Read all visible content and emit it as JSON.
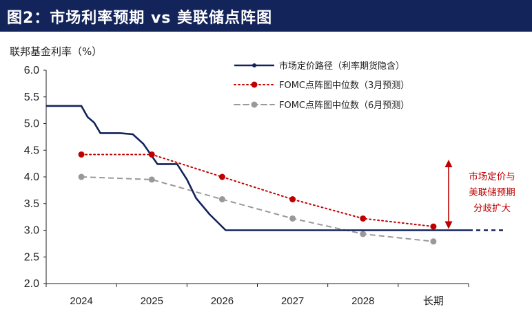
{
  "header": {
    "title": "图2：市场利率预期 vs 美联储点阵图"
  },
  "colors": {
    "banner": "#13245b",
    "market": "#13245b",
    "dot_march": "#c00000",
    "dot_june": "#999999",
    "annotation": "#c00000"
  },
  "chart_data": {
    "type": "line",
    "title": "市场利率预期 vs 美联储点阵图",
    "ylabel": "联邦基金利率（%）",
    "xlabel": "",
    "ylim": [
      2.0,
      6.0
    ],
    "yticks": [
      "6.0",
      "5.5",
      "5.0",
      "4.5",
      "4.0",
      "3.5",
      "3.0",
      "2.5",
      "2.0"
    ],
    "categories": [
      "2024",
      "2025",
      "2026",
      "2027",
      "2028",
      "长期"
    ],
    "legend_position": "top-right",
    "grid": false,
    "series": [
      {
        "name": "市场定价路径（利率期货隐含）",
        "style": "solid",
        "color": "#13245b",
        "points": [
          [
            -0.5,
            5.33
          ],
          [
            0.0,
            5.33
          ],
          [
            0.09,
            5.12
          ],
          [
            0.18,
            5.02
          ],
          [
            0.27,
            4.82
          ],
          [
            0.55,
            4.82
          ],
          [
            0.73,
            4.8
          ],
          [
            0.88,
            4.62
          ],
          [
            1.08,
            4.24
          ],
          [
            1.36,
            4.24
          ],
          [
            1.5,
            3.95
          ],
          [
            1.63,
            3.6
          ],
          [
            1.82,
            3.3
          ],
          [
            2.05,
            3.0
          ],
          [
            5.5,
            3.0
          ]
        ],
        "extension": [
          [
            5.5,
            3.0
          ],
          [
            6.0,
            3.0
          ]
        ]
      },
      {
        "name": "FOMC点阵图中位数（3月预测）",
        "style": "dotted",
        "color": "#c00000",
        "values": [
          4.42,
          4.42,
          4.0,
          3.58,
          3.22,
          3.07
        ]
      },
      {
        "name": "FOMC点阵图中位数（6月预测）",
        "style": "dashed",
        "color": "#999999",
        "values": [
          4.0,
          3.95,
          3.58,
          3.22,
          2.93,
          2.79
        ]
      }
    ],
    "annotation": {
      "lines": [
        "市场定价与",
        "美联储预期",
        "分歧扩大"
      ],
      "arrow_range": [
        3.07,
        4.25
      ]
    }
  }
}
